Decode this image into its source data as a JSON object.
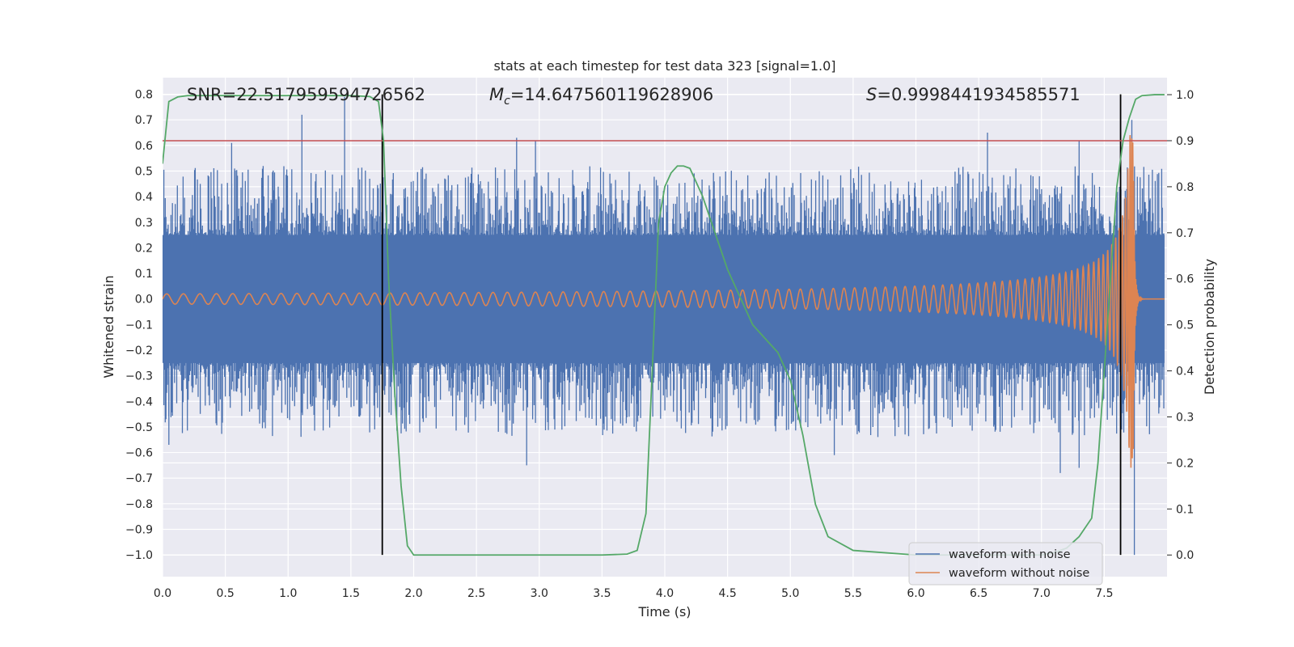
{
  "chart_data": {
    "type": "line",
    "title": "stats at each timestep for test data 323 [signal=1.0]",
    "xlabel": "Time (s)",
    "ylabel": "Whitened strain",
    "y2label": "Detection probability",
    "xlim": [
      0.0,
      8.0
    ],
    "ylim": [
      -1.085,
      0.865
    ],
    "y2lim": [
      -0.047,
      1.037
    ],
    "xticks": [
      "0.0",
      "0.5",
      "1.0",
      "1.5",
      "2.0",
      "2.5",
      "3.0",
      "3.5",
      "4.0",
      "4.5",
      "5.0",
      "5.5",
      "6.0",
      "6.5",
      "7.0",
      "7.5"
    ],
    "yticks": [
      "0.8",
      "0.7",
      "0.6",
      "0.5",
      "0.4",
      "0.3",
      "0.2",
      "0.1",
      "0.0",
      "−0.1",
      "−0.2",
      "−0.3",
      "−0.4",
      "−0.5",
      "−0.6",
      "−0.7",
      "−0.8",
      "−0.9",
      "−1.0"
    ],
    "y2ticks": [
      "1.0",
      "0.9",
      "0.8",
      "0.7",
      "0.6",
      "0.5",
      "0.4",
      "0.3",
      "0.2",
      "0.1",
      "0.0"
    ],
    "annotations": {
      "snr": "SNR=22.517959594726562",
      "mc_symbol": "M",
      "mc_sub": "c",
      "mc_value": "=14.647560119628906",
      "s_symbol": "S",
      "s_value": "=0.9998441934585571"
    },
    "threshold": {
      "value": 0.9,
      "axis": "right",
      "color": "#c44e52"
    },
    "vertical_markers": [
      1.75,
      7.63
    ],
    "series": [
      {
        "name": "waveform with noise",
        "axis": "left",
        "color": "#4c72b0",
        "envelope": {
          "core_amplitude": 0.25,
          "typical_peak": 0.4,
          "max": 0.79,
          "min": -1.0
        }
      },
      {
        "name": "waveform without noise",
        "axis": "left",
        "color": "#dd8452",
        "chirp": {
          "start_amplitude": 0.02,
          "merger_time": 7.73,
          "peak": 0.66,
          "trough": -0.72
        }
      },
      {
        "name": "detection probability",
        "axis": "right",
        "color": "#55a868",
        "x": [
          0.0,
          0.05,
          0.12,
          0.2,
          0.5,
          1.0,
          1.5,
          1.65,
          1.72,
          1.76,
          1.8,
          1.85,
          1.9,
          1.95,
          2.0,
          2.1,
          2.5,
          3.0,
          3.5,
          3.7,
          3.78,
          3.85,
          3.9,
          3.95,
          4.0,
          4.05,
          4.1,
          4.15,
          4.2,
          4.3,
          4.4,
          4.5,
          4.6,
          4.7,
          4.8,
          4.9,
          5.0,
          5.1,
          5.2,
          5.3,
          5.5,
          6.0,
          6.5,
          7.0,
          7.1,
          7.2,
          7.3,
          7.4,
          7.45,
          7.5,
          7.55,
          7.6,
          7.65,
          7.7,
          7.75,
          7.8,
          7.9,
          7.98
        ],
        "values": [
          0.85,
          0.985,
          0.995,
          0.998,
          0.998,
          0.998,
          0.998,
          0.996,
          0.985,
          0.9,
          0.6,
          0.35,
          0.15,
          0.02,
          0.0,
          0.0,
          0.0,
          0.0,
          0.0,
          0.002,
          0.01,
          0.09,
          0.4,
          0.72,
          0.8,
          0.83,
          0.845,
          0.845,
          0.84,
          0.78,
          0.7,
          0.62,
          0.56,
          0.5,
          0.47,
          0.44,
          0.38,
          0.26,
          0.11,
          0.04,
          0.01,
          0.0,
          0.0,
          0.0,
          0.005,
          0.015,
          0.04,
          0.08,
          0.2,
          0.4,
          0.6,
          0.8,
          0.9,
          0.95,
          0.99,
          0.998,
          1.0,
          1.0
        ]
      }
    ],
    "legend_location": "lower-right"
  }
}
